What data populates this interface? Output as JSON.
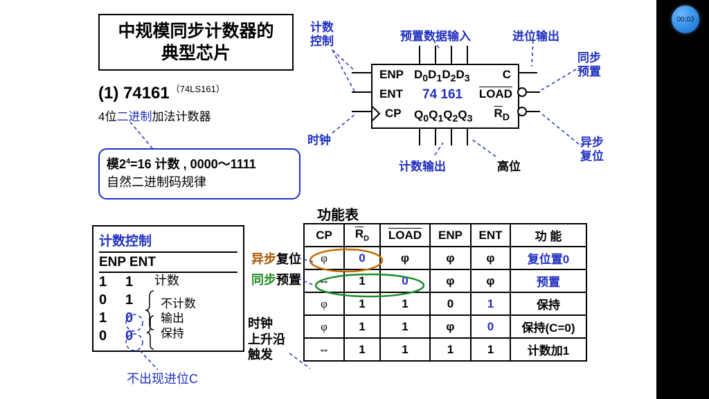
{
  "title": "中规模同步计数器的\n典型芯片",
  "model": {
    "prefix": "(1) 74161",
    "alt": "（74LS161）"
  },
  "desc": {
    "pre": "4位",
    "blue": "二进制",
    "post": "加法计数器"
  },
  "modbox": {
    "l1a": "模2",
    "l1b": "=16 计数 , 0000～1111",
    "l2": "自然二进制码规律"
  },
  "chip": {
    "enp": "ENP",
    "ent": "ENT",
    "cp": "CP",
    "d": "D",
    "q": "Q",
    "c": "C",
    "load": "LOAD",
    "rd": "R",
    "name": "74 161"
  },
  "chip_anno": {
    "count_ctrl": "计数\n控制",
    "preset_in": "预置数据输入",
    "carry_out": "进位输出",
    "sync_preset": "同步\n预置",
    "clock": "时钟",
    "count_out": "计数输出",
    "msb": "高位",
    "async_reset": "异步\n复位"
  },
  "count_ctrl": {
    "hd": "计数控制",
    "cols": "ENP  ENT",
    "rows": [
      {
        "a": "1",
        "b": "1",
        "txt": "计数"
      },
      {
        "a": "0",
        "b": "1",
        "txt": ""
      },
      {
        "a": "1",
        "b": "0",
        "txt": ""
      },
      {
        "a": "0",
        "b": "0",
        "txt": ""
      }
    ],
    "brace1": "不计数",
    "brace2": "输出",
    "brace3": "保持",
    "no_carry": "不出现进位C"
  },
  "ft_title": "功能表",
  "ft_head": [
    "CP",
    "R_D",
    "LOAD",
    "ENP",
    "ENT",
    "功 能"
  ],
  "ft_rows": [
    {
      "cp": "φ",
      "rd": "0",
      "ld": "φ",
      "enp": "φ",
      "ent": "φ",
      "fn": "复位置0",
      "fn_blue": true,
      "rd_blue": true
    },
    {
      "cp": "⇔",
      "rd": "1",
      "ld": "0",
      "enp": "φ",
      "ent": "φ",
      "fn": "预置",
      "fn_blue": true,
      "ld_blue": true
    },
    {
      "cp": "φ",
      "rd": "1",
      "ld": "1",
      "enp": "0",
      "ent": "1",
      "fn": "保持",
      "enp_blue": false,
      "ent_blue": true
    },
    {
      "cp": "φ",
      "rd": "1",
      "ld": "1",
      "enp": "φ",
      "ent": "0",
      "fn": "保持(C=0)",
      "ent_blue": true
    },
    {
      "cp": "⇔",
      "rd": "1",
      "ld": "1",
      "enp": "1",
      "ent": "1",
      "fn": "计数加1"
    }
  ],
  "side_labels": {
    "async_rst": {
      "a": "异步",
      "b": "复位"
    },
    "sync_pre": {
      "a": "同步",
      "b": "预置"
    },
    "clk_edge": "时钟\n上升沿\n触发"
  },
  "badge": "00:03",
  "colors": {
    "blue": "#2030c0",
    "brown": "#aa5500",
    "green": "#228b22",
    "black": "#000000",
    "bg": "#ffffff"
  }
}
